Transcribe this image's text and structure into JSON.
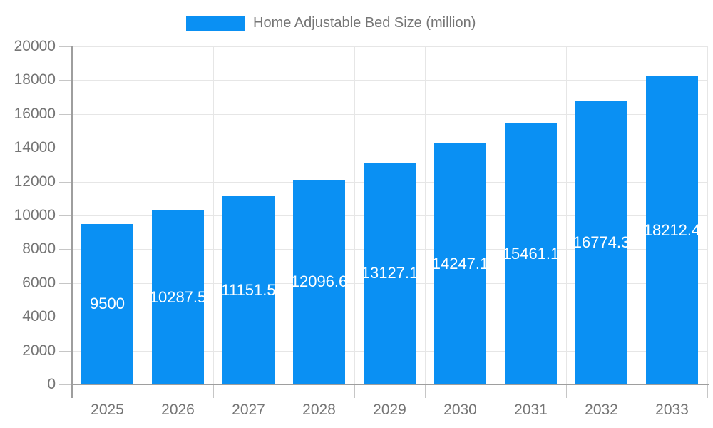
{
  "legend": {
    "label": "Home Adjustable Bed Size (million)"
  },
  "colors": {
    "bar": "#0a90f3",
    "bar_label_text": "#ffffff",
    "axis_label_text": "#757575",
    "legend_text": "#757575",
    "gridline": "#e6e6e6",
    "tick": "#c6c6c6",
    "axis_line": "#9e9e9e",
    "background": "#ffffff"
  },
  "chart_data": {
    "type": "bar",
    "title": "Home Adjustable Bed Size (million)",
    "categories": [
      "2025",
      "2026",
      "2027",
      "2028",
      "2029",
      "2030",
      "2031",
      "2032",
      "2033"
    ],
    "values": [
      9500,
      10287.5,
      11151.5,
      12096.6,
      13127.1,
      14247.1,
      15461.1,
      16774.3,
      18212.4
    ],
    "series_name": "Home Adjustable Bed Size (million)",
    "xlabel": "",
    "ylabel": "",
    "ylim": [
      0,
      20000
    ],
    "ytick_step": 2000,
    "ytick_labels": [
      "0",
      "2000",
      "4000",
      "6000",
      "8000",
      "10000",
      "12000",
      "14000",
      "16000",
      "18000",
      "20000"
    ],
    "grid": true,
    "legend_position": "top-center",
    "bar_value_labels_visible": true,
    "bar_value_label_position": "center-of-bar"
  }
}
